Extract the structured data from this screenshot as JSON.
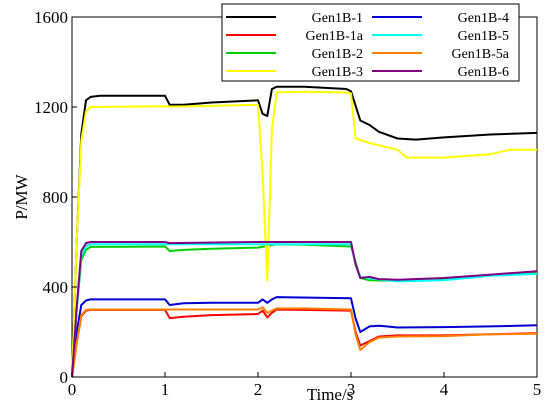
{
  "chart_data": {
    "type": "line",
    "title": "",
    "xlabel": "Time/s",
    "ylabel": "P/MW",
    "xlim": [
      0,
      5
    ],
    "ylim": [
      0,
      1600
    ],
    "x_ticks": [
      "0",
      "1",
      "2",
      "3",
      "4",
      "5"
    ],
    "y_ticks": [
      "0",
      "400",
      "800",
      "1200",
      "1600"
    ],
    "grid": false,
    "legend_position": "top-right",
    "series": [
      {
        "name": "Gen1B-1",
        "color": "#000000",
        "points": [
          [
            0,
            0
          ],
          [
            0.05,
            600
          ],
          [
            0.1,
            1080
          ],
          [
            0.15,
            1230
          ],
          [
            0.2,
            1245
          ],
          [
            0.3,
            1250
          ],
          [
            1.0,
            1250
          ],
          [
            1.05,
            1210
          ],
          [
            1.2,
            1210
          ],
          [
            1.5,
            1220
          ],
          [
            2.0,
            1230
          ],
          [
            2.05,
            1170
          ],
          [
            2.1,
            1160
          ],
          [
            2.15,
            1280
          ],
          [
            2.2,
            1290
          ],
          [
            2.5,
            1290
          ],
          [
            2.95,
            1280
          ],
          [
            3.0,
            1270
          ],
          [
            3.1,
            1140
          ],
          [
            3.2,
            1120
          ],
          [
            3.3,
            1090
          ],
          [
            3.5,
            1060
          ],
          [
            3.7,
            1055
          ],
          [
            4.0,
            1065
          ],
          [
            4.5,
            1078
          ],
          [
            5.0,
            1085
          ]
        ]
      },
      {
        "name": "Gen1B-1a",
        "color": "#ff0000",
        "points": [
          [
            0,
            0
          ],
          [
            0.05,
            150
          ],
          [
            0.1,
            270
          ],
          [
            0.15,
            295
          ],
          [
            0.2,
            298
          ],
          [
            1.0,
            298
          ],
          [
            1.05,
            262
          ],
          [
            1.2,
            268
          ],
          [
            1.5,
            275
          ],
          [
            2.0,
            280
          ],
          [
            2.05,
            295
          ],
          [
            2.1,
            265
          ],
          [
            2.15,
            285
          ],
          [
            2.2,
            300
          ],
          [
            3.0,
            295
          ],
          [
            3.05,
            200
          ],
          [
            3.1,
            140
          ],
          [
            3.2,
            160
          ],
          [
            3.3,
            180
          ],
          [
            3.5,
            185
          ],
          [
            4.0,
            185
          ],
          [
            4.5,
            190
          ],
          [
            5.0,
            195
          ]
        ]
      },
      {
        "name": "Gen1B-2",
        "color": "#00d000",
        "points": [
          [
            0,
            0
          ],
          [
            0.05,
            300
          ],
          [
            0.1,
            520
          ],
          [
            0.15,
            565
          ],
          [
            0.2,
            578
          ],
          [
            1.0,
            580
          ],
          [
            1.05,
            560
          ],
          [
            1.2,
            565
          ],
          [
            1.5,
            570
          ],
          [
            2.0,
            575
          ],
          [
            2.2,
            590
          ],
          [
            2.5,
            588
          ],
          [
            3.0,
            580
          ],
          [
            3.1,
            440
          ],
          [
            3.2,
            430
          ],
          [
            3.5,
            428
          ],
          [
            4.0,
            438
          ],
          [
            4.5,
            452
          ],
          [
            5.0,
            465
          ]
        ]
      },
      {
        "name": "Gen1B-3",
        "color": "#ffff00",
        "points": [
          [
            0,
            0
          ],
          [
            0.05,
            600
          ],
          [
            0.1,
            1050
          ],
          [
            0.15,
            1180
          ],
          [
            0.2,
            1200
          ],
          [
            1.0,
            1203
          ],
          [
            1.05,
            1202
          ],
          [
            1.5,
            1205
          ],
          [
            2.0,
            1210
          ],
          [
            2.05,
            900
          ],
          [
            2.1,
            430
          ],
          [
            2.15,
            1100
          ],
          [
            2.2,
            1265
          ],
          [
            2.5,
            1268
          ],
          [
            2.95,
            1265
          ],
          [
            3.0,
            1260
          ],
          [
            3.05,
            1060
          ],
          [
            3.2,
            1040
          ],
          [
            3.5,
            1010
          ],
          [
            3.6,
            975
          ],
          [
            4.0,
            975
          ],
          [
            4.5,
            990
          ],
          [
            4.7,
            1010
          ],
          [
            5.0,
            1010
          ]
        ]
      },
      {
        "name": "Gen1B-4",
        "color": "#0000d0",
        "points": [
          [
            0,
            0
          ],
          [
            0.05,
            200
          ],
          [
            0.1,
            320
          ],
          [
            0.15,
            340
          ],
          [
            0.2,
            345
          ],
          [
            1.0,
            345
          ],
          [
            1.05,
            320
          ],
          [
            1.2,
            328
          ],
          [
            1.5,
            330
          ],
          [
            2.0,
            330
          ],
          [
            2.05,
            345
          ],
          [
            2.1,
            330
          ],
          [
            2.15,
            345
          ],
          [
            2.2,
            355
          ],
          [
            3.0,
            350
          ],
          [
            3.05,
            260
          ],
          [
            3.1,
            200
          ],
          [
            3.2,
            225
          ],
          [
            3.3,
            228
          ],
          [
            3.5,
            220
          ],
          [
            4.0,
            222
          ],
          [
            4.5,
            225
          ],
          [
            5.0,
            230
          ]
        ]
      },
      {
        "name": "Gen1B-5",
        "color": "#00ffff",
        "points": [
          [
            0,
            0
          ],
          [
            0.05,
            300
          ],
          [
            0.1,
            540
          ],
          [
            0.15,
            582
          ],
          [
            0.2,
            590
          ],
          [
            3.0,
            590
          ],
          [
            3.05,
            500
          ],
          [
            3.1,
            445
          ],
          [
            3.2,
            438
          ],
          [
            3.5,
            425
          ],
          [
            4.0,
            430
          ],
          [
            4.5,
            450
          ],
          [
            5.0,
            458
          ]
        ]
      },
      {
        "name": "Gen1B-5a",
        "color": "#ff8000",
        "points": [
          [
            0,
            0
          ],
          [
            0.05,
            150
          ],
          [
            0.1,
            275
          ],
          [
            0.15,
            298
          ],
          [
            0.2,
            300
          ],
          [
            1.0,
            300
          ],
          [
            1.5,
            300
          ],
          [
            2.0,
            300
          ],
          [
            2.05,
            310
          ],
          [
            2.1,
            285
          ],
          [
            2.2,
            305
          ],
          [
            2.5,
            305
          ],
          [
            3.0,
            300
          ],
          [
            3.05,
            190
          ],
          [
            3.1,
            120
          ],
          [
            3.2,
            155
          ],
          [
            3.3,
            175
          ],
          [
            3.5,
            180
          ],
          [
            4.0,
            182
          ],
          [
            4.5,
            190
          ],
          [
            5.0,
            192
          ]
        ]
      },
      {
        "name": "Gen1B-6",
        "color": "#800080",
        "points": [
          [
            0,
            0
          ],
          [
            0.05,
            310
          ],
          [
            0.1,
            560
          ],
          [
            0.15,
            595
          ],
          [
            0.2,
            600
          ],
          [
            1.0,
            600
          ],
          [
            1.05,
            595
          ],
          [
            2.0,
            600
          ],
          [
            3.0,
            600
          ],
          [
            3.05,
            500
          ],
          [
            3.1,
            440
          ],
          [
            3.2,
            445
          ],
          [
            3.3,
            435
          ],
          [
            3.5,
            432
          ],
          [
            4.0,
            440
          ],
          [
            4.5,
            455
          ],
          [
            5.0,
            470
          ]
        ]
      }
    ]
  }
}
